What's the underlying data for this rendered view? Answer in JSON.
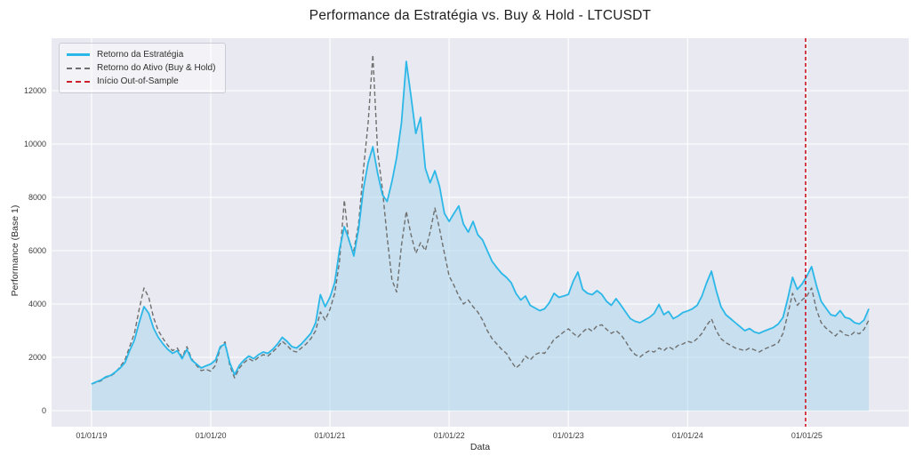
{
  "chart_data": {
    "type": "line",
    "title": "Performance da Estratégia vs. Buy & Hold - LTCUSDT",
    "xlabel": "Data",
    "ylabel": "Performance (Base 1)",
    "grid": true,
    "legend_position": "upper-left",
    "plot_background": "#e9e9f1",
    "grid_color": "#ffffff",
    "xlim_years": [
      2018.665,
      2025.855
    ],
    "ylim": [
      -600,
      13970
    ],
    "y_ticks": [
      {
        "value": 0,
        "label": "0"
      },
      {
        "value": 2000,
        "label": "2000"
      },
      {
        "value": 4000,
        "label": "4000"
      },
      {
        "value": 6000,
        "label": "6000"
      },
      {
        "value": 8000,
        "label": "8000"
      },
      {
        "value": 10000,
        "label": "10000"
      },
      {
        "value": 12000,
        "label": "12000"
      }
    ],
    "x_ticks": [
      {
        "t": 2019.0,
        "label": "01/01/19"
      },
      {
        "t": 2020.0,
        "label": "01/01/20"
      },
      {
        "t": 2021.0,
        "label": "01/01/21"
      },
      {
        "t": 2022.0,
        "label": "01/01/22"
      },
      {
        "t": 2023.0,
        "label": "01/01/23"
      },
      {
        "t": 2024.0,
        "label": "01/01/24"
      },
      {
        "t": 2025.0,
        "label": "01/01/25"
      }
    ],
    "series": [
      {
        "name": "Retorno da Estratégia",
        "color": "#2bb8e8",
        "style": "solid",
        "line_width": 1.8,
        "fill_below": true,
        "fill_color": "rgba(158,210,235,0.45)",
        "t_start": 2019.0,
        "t_step": 0.04,
        "values": [
          1000,
          1080,
          1150,
          1270,
          1320,
          1450,
          1600,
          1800,
          2250,
          2650,
          3300,
          3900,
          3650,
          3100,
          2750,
          2500,
          2300,
          2150,
          2250,
          1950,
          2300,
          1900,
          1750,
          1600,
          1680,
          1750,
          1900,
          2400,
          2500,
          1800,
          1350,
          1700,
          1900,
          2050,
          1950,
          2100,
          2200,
          2150,
          2300,
          2500,
          2750,
          2600,
          2400,
          2350,
          2500,
          2700,
          2900,
          3300,
          4350,
          3900,
          4255,
          4800,
          6030,
          6900,
          6400,
          5800,
          6800,
          8300,
          9300,
          9900,
          8900,
          8100,
          7850,
          8600,
          9500,
          10800,
          13100,
          11800,
          10400,
          11000,
          9100,
          8550,
          9000,
          8400,
          7400,
          7100,
          7400,
          7680,
          7000,
          6700,
          7100,
          6600,
          6400,
          6000,
          5600,
          5360,
          5150,
          5000,
          4800,
          4400,
          4150,
          4300,
          3950,
          3850,
          3750,
          3820,
          4050,
          4400,
          4250,
          4300,
          4360,
          4850,
          5200,
          4550,
          4400,
          4350,
          4500,
          4360,
          4100,
          3950,
          4200,
          3960,
          3700,
          3450,
          3350,
          3300,
          3400,
          3500,
          3650,
          3980,
          3600,
          3720,
          3450,
          3550,
          3680,
          3740,
          3820,
          3950,
          4300,
          4800,
          5230,
          4500,
          3900,
          3600,
          3450,
          3300,
          3150,
          3000,
          3080,
          2950,
          2900,
          2980,
          3050,
          3120,
          3250,
          3500,
          4200,
          5000,
          4550,
          4750,
          5050,
          5400,
          4700,
          4100,
          3850,
          3600,
          3550,
          3750,
          3500,
          3450,
          3300,
          3250,
          3400,
          3820
        ]
      },
      {
        "name": "Retorno do Ativo (Buy & Hold)",
        "color": "#6f6f6f",
        "style": "dashed",
        "line_width": 1.4,
        "fill_below": false,
        "t_start": 2019.0,
        "t_step": 0.04,
        "values": [
          1000,
          1060,
          1120,
          1250,
          1300,
          1420,
          1650,
          1900,
          2400,
          2900,
          3800,
          4600,
          4250,
          3500,
          3000,
          2700,
          2450,
          2250,
          2350,
          2000,
          2400,
          1950,
          1700,
          1500,
          1550,
          1480,
          1700,
          2350,
          2580,
          1700,
          1230,
          1600,
          1800,
          1950,
          1850,
          2000,
          2100,
          2050,
          2200,
          2380,
          2600,
          2450,
          2250,
          2200,
          2350,
          2500,
          2700,
          3000,
          3700,
          3400,
          3800,
          4400,
          5600,
          7900,
          6300,
          6000,
          7000,
          9000,
          10800,
          13350,
          9700,
          8300,
          6500,
          4900,
          4450,
          6200,
          7480,
          6600,
          5900,
          6300,
          6000,
          6700,
          7600,
          6800,
          5900,
          5050,
          4700,
          4300,
          4000,
          4150,
          3900,
          3700,
          3400,
          3000,
          2700,
          2500,
          2300,
          2150,
          1850,
          1600,
          1750,
          2050,
          1900,
          2100,
          2180,
          2150,
          2400,
          2680,
          2800,
          2950,
          3070,
          2900,
          2760,
          2950,
          3100,
          2980,
          3180,
          3220,
          3050,
          2900,
          3000,
          2850,
          2600,
          2300,
          2100,
          2010,
          2150,
          2250,
          2200,
          2350,
          2250,
          2400,
          2300,
          2450,
          2500,
          2600,
          2550,
          2700,
          2900,
          3200,
          3440,
          3000,
          2700,
          2550,
          2450,
          2350,
          2300,
          2250,
          2350,
          2280,
          2200,
          2300,
          2380,
          2450,
          2550,
          2900,
          3600,
          4400,
          3950,
          4150,
          4300,
          4600,
          3800,
          3300,
          3100,
          2950,
          2800,
          3000,
          2850,
          2800,
          2950,
          2880,
          3050,
          3400
        ]
      }
    ],
    "vline": {
      "name": "Início Out-of-Sample",
      "t": 2024.99,
      "color": "#cc1f2d",
      "style": "dashed",
      "line_width": 1.7
    }
  }
}
